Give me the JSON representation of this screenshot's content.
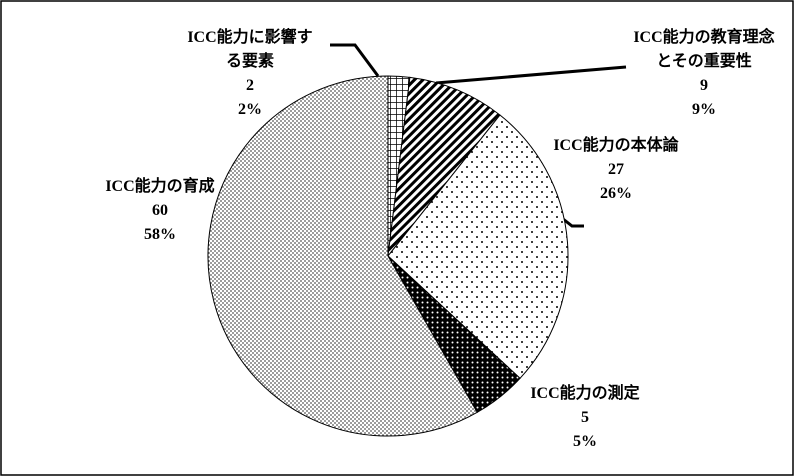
{
  "chart_data": {
    "type": "pie",
    "categories": [
      "ICC能力に影響する要素",
      "ICC能力の教育理念とその重要性",
      "ICC能力の本体論",
      "ICC能力の測定",
      "ICC能力の育成"
    ],
    "values": [
      2,
      9,
      27,
      5,
      60
    ],
    "percent_labels": [
      "2%",
      "9%",
      "26%",
      "5%",
      "58%"
    ],
    "patterns": [
      "grid",
      "diagonal",
      "sparse-dots",
      "dark-dots",
      "dense-dots"
    ]
  }
}
